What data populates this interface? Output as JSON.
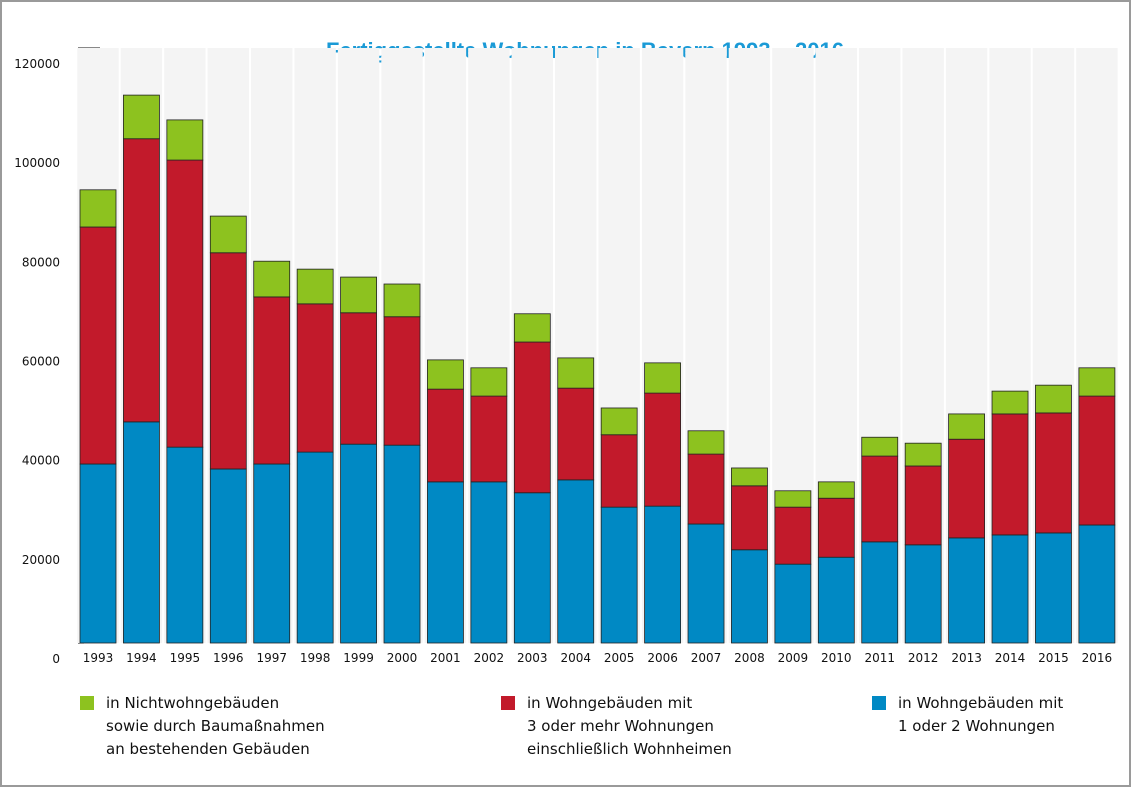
{
  "chart_data": {
    "type": "stacked_bar",
    "title": "Fertiggestellte Wohnungen in Bayern 1993 – 2016",
    "categories": [
      "1993",
      "1994",
      "1995",
      "1996",
      "1997",
      "1998",
      "1999",
      "2000",
      "2001",
      "2002",
      "2003",
      "2004",
      "2005",
      "2006",
      "2007",
      "2008",
      "2009",
      "2010",
      "2011",
      "2012",
      "2013",
      "2014",
      "2015",
      "2016"
    ],
    "series": [
      {
        "name": "in Wohngebäuden mit\n1 oder 2 Wohnungen",
        "color": "#0089c4",
        "values": [
          36100,
          44600,
          39500,
          35100,
          36100,
          38500,
          40100,
          39900,
          32500,
          32500,
          30300,
          32900,
          27400,
          27600,
          24000,
          18800,
          15900,
          17300,
          20400,
          19800,
          21200,
          21800,
          22200,
          23800
        ]
      },
      {
        "name": "in Wohngebäuden mit\n3 oder mehr Wohnungen\neinschließlich Wohnheimen",
        "color": "#c21a2b",
        "values": [
          47800,
          57100,
          57900,
          43600,
          33700,
          29900,
          26500,
          25900,
          18700,
          17300,
          30400,
          18500,
          14600,
          22800,
          14100,
          12900,
          11500,
          11900,
          17300,
          15900,
          19900,
          24400,
          24200,
          26000
        ]
      },
      {
        "name": "in Nichtwohngebäuden\nsowie durch Baumaßnahmen\nan bestehenden Gebäuden",
        "color": "#8dc21f",
        "values": [
          7500,
          8800,
          8100,
          7400,
          7200,
          7000,
          7200,
          6600,
          5900,
          5700,
          5700,
          6100,
          5400,
          6100,
          4700,
          3600,
          3300,
          3300,
          3800,
          4600,
          5100,
          4600,
          5600,
          5700
        ]
      }
    ],
    "ylim": [
      0,
      120000
    ],
    "yticks": [
      0,
      20000,
      40000,
      60000,
      80000,
      100000,
      120000
    ]
  }
}
